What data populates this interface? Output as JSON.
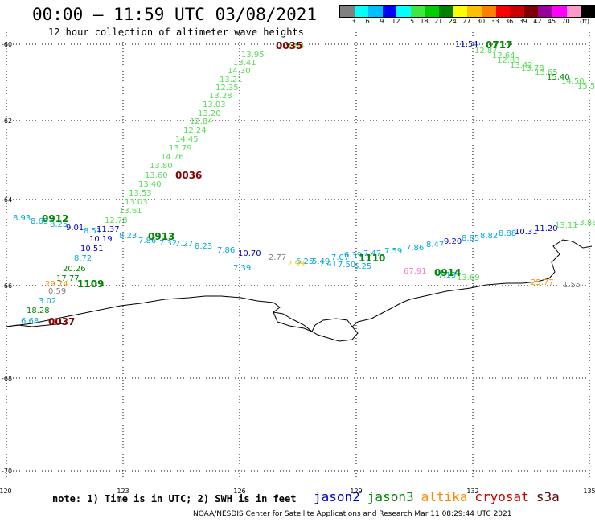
{
  "header": {
    "title": "00:00 – 11:59 UTC 03/08/2021",
    "subtitle": "12 hour collection of altimeter wave heights"
  },
  "legend": {
    "colors": [
      "#808080",
      "#00ffff",
      "#00bfff",
      "#0000ff",
      "#00ffff",
      "#3ee83e",
      "#00cc00",
      "#008000",
      "#ffff00",
      "#ffbf00",
      "#ff8000",
      "#ff0000",
      "#cc0000",
      "#800000",
      "#990099",
      "#ff00ff",
      "#ff99cc",
      "#000000"
    ],
    "labels": [
      "3",
      "6",
      "9",
      "12",
      "15",
      "18",
      "21",
      "24",
      "27",
      "30",
      "33",
      "36",
      "39",
      "42",
      "45",
      "70"
    ],
    "unit": "(ft)"
  },
  "axes": {
    "lon_labels": [
      "120",
      "123",
      "126",
      "129",
      "132",
      "135"
    ],
    "lat_labels": [
      "-60",
      "-62",
      "-64",
      "-66",
      "-68",
      "-70"
    ]
  },
  "footer": {
    "note": "note: 1) Time is in UTC; 2) SWH is in feet",
    "satellites": [
      {
        "name": "jason2",
        "color": "#0000cc"
      },
      {
        "name": "jason3",
        "color": "#008800"
      },
      {
        "name": "altika",
        "color": "#ff8800"
      },
      {
        "name": "cryosat",
        "color": "#cc0000"
      },
      {
        "name": "s3a",
        "color": "#660000"
      }
    ],
    "credit": "NOAA/NESDIS Center for Satellite Applications and Research   Mar 11 08:29:44 UTC 2021"
  },
  "readings": [
    {
      "t": "13.84",
      "c": "#55dd55"
    },
    {
      "t": "13.95",
      "c": "#55dd55"
    },
    {
      "t": "13.41",
      "c": "#55dd55"
    },
    {
      "t": "14.30",
      "c": "#55dd55"
    },
    {
      "t": "13.21",
      "c": "#55dd55"
    },
    {
      "t": "12.35",
      "c": "#55dd55"
    },
    {
      "t": "13.28",
      "c": "#55dd55"
    },
    {
      "t": "13.03",
      "c": "#55dd55"
    },
    {
      "t": "13.20",
      "c": "#55dd55"
    },
    {
      "t": "12.84",
      "c": "#55dd55"
    },
    {
      "t": "12.24",
      "c": "#55dd55"
    },
    {
      "t": "14.45",
      "c": "#55dd55"
    },
    {
      "t": "13.79",
      "c": "#55dd55"
    },
    {
      "t": "14.76",
      "c": "#55dd55"
    },
    {
      "t": "13.80",
      "c": "#55dd55"
    },
    {
      "t": "13.60",
      "c": "#55dd55"
    },
    {
      "t": "13.40",
      "c": "#55dd55"
    },
    {
      "t": "13.53",
      "c": "#55dd55"
    },
    {
      "t": "13.03",
      "c": "#55dd55"
    },
    {
      "t": "13.61",
      "c": "#55dd55"
    },
    {
      "t": "12.78",
      "c": "#55dd55"
    },
    {
      "t": "8.93",
      "c": "#00aadd"
    },
    {
      "t": "8.65",
      "c": "#00aadd"
    },
    {
      "t": "8.25",
      "c": "#00aadd"
    },
    {
      "t": "9.01",
      "c": "#0000cc"
    },
    {
      "t": "8.51",
      "c": "#00aadd"
    },
    {
      "t": "11.37",
      "c": "#0000cc"
    },
    {
      "t": "10.19",
      "c": "#0000cc"
    },
    {
      "t": "10.51",
      "c": "#0000cc"
    },
    {
      "t": "8.72",
      "c": "#00aadd"
    },
    {
      "t": "8.23",
      "c": "#00aadd"
    },
    {
      "t": "7.86",
      "c": "#00aadd"
    },
    {
      "t": "7.32",
      "c": "#00aadd"
    },
    {
      "t": "7.27",
      "c": "#00aadd"
    },
    {
      "t": "8.23",
      "c": "#00aadd"
    },
    {
      "t": "7.86",
      "c": "#00aadd"
    },
    {
      "t": "10.70",
      "c": "#0000cc"
    },
    {
      "t": "7.39",
      "c": "#00aadd"
    },
    {
      "t": "2.77",
      "c": "#808080"
    },
    {
      "t": "6.25",
      "c": "#00aadd"
    },
    {
      "t": "5.49",
      "c": "#00aadd"
    },
    {
      "t": "7.07",
      "c": "#00aadd"
    },
    {
      "t": "6.39",
      "c": "#00aadd"
    },
    {
      "t": "7.47",
      "c": "#00aadd"
    },
    {
      "t": "7.59",
      "c": "#00aadd"
    },
    {
      "t": "7.86",
      "c": "#00aadd"
    },
    {
      "t": "8.47",
      "c": "#00aadd"
    },
    {
      "t": "9.20",
      "c": "#0000cc"
    },
    {
      "t": "8.85",
      "c": "#00aadd"
    },
    {
      "t": "8.82",
      "c": "#00aadd"
    },
    {
      "t": "8.88",
      "c": "#00aadd"
    },
    {
      "t": "10.31",
      "c": "#0000cc"
    },
    {
      "t": "11.20",
      "c": "#0000cc"
    },
    {
      "t": "13.11",
      "c": "#55dd55"
    },
    {
      "t": "13.88",
      "c": "#55dd55"
    },
    {
      "t": "7.41",
      "c": "#00aadd"
    },
    {
      "t": "7.50",
      "c": "#00aadd"
    },
    {
      "t": "6.25",
      "c": "#00aadd"
    },
    {
      "t": "2.99",
      "c": "#ffcc00"
    },
    {
      "t": "67.91",
      "c": "#ff77cc"
    },
    {
      "t": "7.13",
      "c": "#00aadd"
    },
    {
      "t": "13.69",
      "c": "#55dd55"
    },
    {
      "t": "25.77",
      "c": "#ff9900"
    },
    {
      "t": "1.55",
      "c": "#808080"
    },
    {
      "t": "20.26",
      "c": "#008800"
    },
    {
      "t": "17.77",
      "c": "#008800"
    },
    {
      "t": "29.74",
      "c": "#ff8800"
    },
    {
      "t": "0.59",
      "c": "#808080"
    },
    {
      "t": "3.02",
      "c": "#00aadd"
    },
    {
      "t": "18.28",
      "c": "#008800"
    },
    {
      "t": "6.68",
      "c": "#00aadd"
    },
    {
      "t": "11.54",
      "c": "#0000cc"
    },
    {
      "t": "12.87",
      "c": "#55dd55"
    },
    {
      "t": "12.64",
      "c": "#55dd55"
    },
    {
      "t": "12.83",
      "c": "#55dd55"
    },
    {
      "t": "13.42",
      "c": "#55dd55"
    },
    {
      "t": "13.78",
      "c": "#55dd55"
    },
    {
      "t": "13.65",
      "c": "#55dd55"
    },
    {
      "t": "15.40",
      "c": "#008800"
    },
    {
      "t": "14.50",
      "c": "#55dd55"
    },
    {
      "t": "15.5",
      "c": "#55dd55"
    }
  ],
  "pass_labels": [
    {
      "t": "0035",
      "c": "#880000"
    },
    {
      "t": "0036",
      "c": "#880000"
    },
    {
      "t": "0912",
      "c": "#008800"
    },
    {
      "t": "0913",
      "c": "#008800"
    },
    {
      "t": "1109",
      "c": "#008800"
    },
    {
      "t": "0037",
      "c": "#880000"
    },
    {
      "t": "1110",
      "c": "#008800"
    },
    {
      "t": "0914",
      "c": "#008800"
    },
    {
      "t": "0717",
      "c": "#008800"
    }
  ]
}
